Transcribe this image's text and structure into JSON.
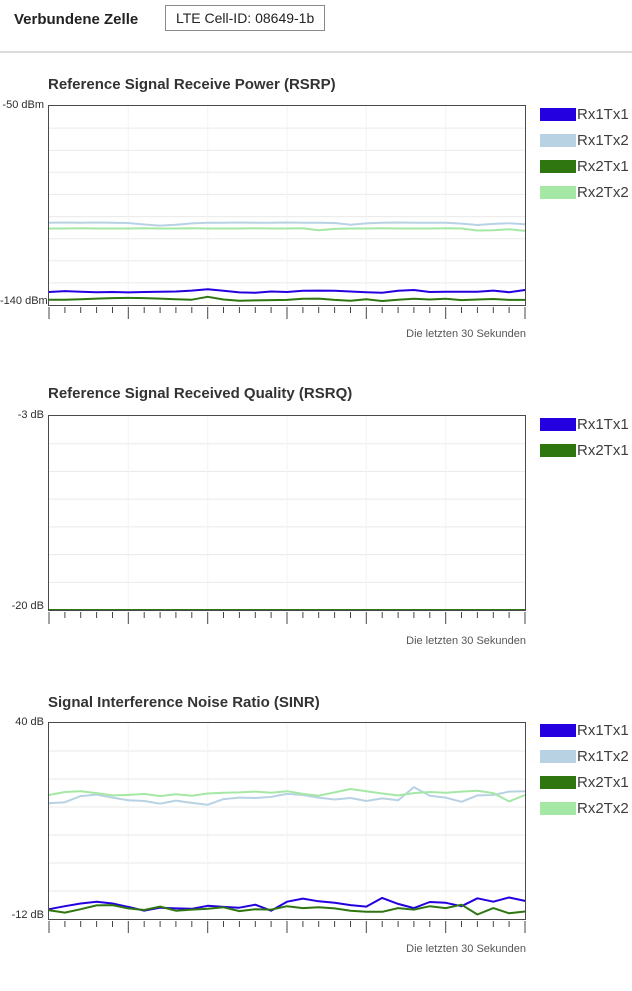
{
  "header": {
    "title": "Verbundene Zelle",
    "cell_id_value": "LTE Cell-ID: 08649-1b"
  },
  "colors": {
    "rx1tx1": "#2400e0",
    "rx1tx2": "#b8d2e4",
    "rx2tx1": "#2f7611",
    "rx2tx2": "#a5e8a5",
    "plot_border": "#4a4a4a",
    "grid": "#eaeaea",
    "grid_vertical": "#f3f3f3",
    "tick": "#444444"
  },
  "charts": [
    {
      "title": "Reference Signal Receive Power (RSRP)",
      "y_max_label": "-50 dBm",
      "y_min_label": "-140 dBm",
      "caption": "Die letzten 30 Sekunden",
      "legend": [
        {
          "label": "Rx1Tx1",
          "color_key": "rx1tx1"
        },
        {
          "label": "Rx1Tx2",
          "color_key": "rx1tx2"
        },
        {
          "label": "Rx2Tx1",
          "color_key": "rx2tx1"
        },
        {
          "label": "Rx2Tx2",
          "color_key": "rx2tx2"
        }
      ],
      "chart_data": {
        "type": "line",
        "title": "Reference Signal Receive Power (RSRP)",
        "ylabel": "dBm",
        "ylim": [
          -140,
          -50
        ],
        "y_divisions": 9,
        "x_range": [
          0,
          30
        ],
        "x_ticks": 31,
        "major_tick_every": 5,
        "grid": true,
        "legend_position": "right",
        "series": [
          {
            "name": "Rx1Tx2",
            "color_key": "rx1tx2",
            "values": [
              -102.8,
              -102.7,
              -102.8,
              -102.7,
              -102.8,
              -102.9,
              -103.6,
              -104.1,
              -103.7,
              -103.1,
              -102.8,
              -102.8,
              -102.7,
              -102.8,
              -102.8,
              -102.7,
              -102.8,
              -102.8,
              -102.9,
              -103.7,
              -103.1,
              -102.8,
              -102.7,
              -102.8,
              -102.8,
              -102.8,
              -103.2,
              -103.8,
              -103.3,
              -103.0,
              -103.5
            ]
          },
          {
            "name": "Rx2Tx2",
            "color_key": "rx2tx2",
            "values": [
              -105.4,
              -105.4,
              -105.3,
              -105.4,
              -105.4,
              -105.4,
              -105.3,
              -105.4,
              -105.4,
              -105.3,
              -105.4,
              -105.4,
              -105.4,
              -105.3,
              -105.4,
              -105.4,
              -105.3,
              -106.2,
              -105.6,
              -105.4,
              -105.4,
              -105.3,
              -105.4,
              -105.4,
              -105.4,
              -105.3,
              -105.4,
              -106.3,
              -106.2,
              -105.7,
              -106.5
            ]
          },
          {
            "name": "Rx2Tx1",
            "color_key": "rx2tx1",
            "values": [
              -137.6,
              -137.6,
              -137.4,
              -137.1,
              -136.9,
              -136.8,
              -136.9,
              -137.1,
              -137.4,
              -137.6,
              -136.3,
              -137.5,
              -138.1,
              -137.9,
              -137.8,
              -137.7,
              -137.2,
              -137.1,
              -137.7,
              -138.1,
              -137.4,
              -138.2,
              -137.6,
              -137.2,
              -137.5,
              -137.2,
              -137.8,
              -137.5,
              -137.3,
              -137.7,
              -137.7
            ]
          },
          {
            "name": "Rx1Tx1",
            "color_key": "rx1tx1",
            "values": [
              -134.1,
              -133.7,
              -134.0,
              -134.2,
              -134.1,
              -134.3,
              -134.1,
              -134.0,
              -133.9,
              -133.5,
              -132.9,
              -133.6,
              -134.3,
              -134.5,
              -133.9,
              -134.1,
              -133.6,
              -133.5,
              -133.6,
              -133.9,
              -134.2,
              -134.5,
              -133.6,
              -133.2,
              -134.1,
              -134.0,
              -134.0,
              -134.0,
              -133.5,
              -134.2,
              -133.2
            ]
          }
        ]
      }
    },
    {
      "title": "Reference Signal Received Quality (RSRQ)",
      "y_max_label": "-3 dB",
      "y_min_label": "-20 dB",
      "caption": "Die letzten 30 Sekunden",
      "legend": [
        {
          "label": "Rx1Tx1",
          "color_key": "rx1tx1"
        },
        {
          "label": "Rx2Tx1",
          "color_key": "rx2tx1"
        }
      ],
      "chart_data": {
        "type": "line",
        "title": "Reference Signal Received Quality (RSRQ)",
        "ylabel": "dB",
        "ylim": [
          -20,
          -3
        ],
        "y_divisions": 7,
        "x_range": [
          0,
          30
        ],
        "x_ticks": 31,
        "major_tick_every": 5,
        "grid": true,
        "legend_position": "right",
        "series": [
          {
            "name": "Rx1Tx1",
            "color_key": "rx1tx1",
            "values": [
              -20,
              -20,
              -20,
              -20,
              -20,
              -20,
              -20,
              -20,
              -20,
              -20,
              -20,
              -20,
              -20,
              -20,
              -20,
              -20,
              -20,
              -20,
              -20,
              -20,
              -20,
              -20,
              -20,
              -20,
              -20,
              -20,
              -20,
              -20,
              -20,
              -20,
              -20
            ]
          },
          {
            "name": "Rx2Tx1",
            "color_key": "rx2tx1",
            "values": [
              -20,
              -20,
              -20,
              -20,
              -20,
              -20,
              -20,
              -20,
              -20,
              -20,
              -20,
              -20,
              -20,
              -20,
              -20,
              -20,
              -20,
              -20,
              -20,
              -20,
              -20,
              -20,
              -20,
              -20,
              -20,
              -20,
              -20,
              -20,
              -20,
              -20,
              -20
            ]
          }
        ]
      }
    },
    {
      "title": "Signal Interference Noise Ratio (SINR)",
      "y_max_label": "40 dB",
      "y_min_label": "-12 dB",
      "caption": "Die letzten 30 Sekunden",
      "legend": [
        {
          "label": "Rx1Tx1",
          "color_key": "rx1tx1"
        },
        {
          "label": "Rx1Tx2",
          "color_key": "rx1tx2"
        },
        {
          "label": "Rx2Tx1",
          "color_key": "rx2tx1"
        },
        {
          "label": "Rx2Tx2",
          "color_key": "rx2tx2"
        }
      ],
      "chart_data": {
        "type": "line",
        "title": "Signal Interference Noise Ratio (SINR)",
        "ylabel": "dB",
        "ylim": [
          -12,
          40
        ],
        "y_divisions": 7,
        "x_range": [
          0,
          30
        ],
        "x_ticks": 31,
        "major_tick_every": 5,
        "grid": true,
        "legend_position": "right",
        "series": [
          {
            "name": "Rx1Tx2",
            "color_key": "rx1tx2",
            "values": [
              18.7,
              19.0,
              20.6,
              21.0,
              20.2,
              19.5,
              19.3,
              18.6,
              19.4,
              18.8,
              18.3,
              19.8,
              20.2,
              20.1,
              20.4,
              21.2,
              20.9,
              20.2,
              19.7,
              20.1,
              19.3,
              20.0,
              19.5,
              23.0,
              20.7,
              20.2,
              19.1,
              20.8,
              20.9,
              21.8,
              21.9
            ]
          },
          {
            "name": "Rx2Tx2",
            "color_key": "rx2tx2",
            "values": [
              20.9,
              21.7,
              21.9,
              21.4,
              20.8,
              20.9,
              21.2,
              20.6,
              21.1,
              20.7,
              21.3,
              21.5,
              21.6,
              21.8,
              21.5,
              21.9,
              21.2,
              20.7,
              21.6,
              22.5,
              21.9,
              21.3,
              20.8,
              21.4,
              21.7,
              21.5,
              21.8,
              22.0,
              21.4,
              19.2,
              20.9
            ]
          },
          {
            "name": "Rx1Tx1",
            "color_key": "rx1tx1",
            "values": [
              -9.4,
              -8.6,
              -7.9,
              -7.4,
              -7.9,
              -8.8,
              -9.8,
              -9.0,
              -9.2,
              -9.3,
              -8.5,
              -8.8,
              -9.0,
              -8.2,
              -9.8,
              -7.4,
              -6.6,
              -7.3,
              -7.7,
              -8.3,
              -8.7,
              -6.4,
              -8.0,
              -9.1,
              -7.5,
              -7.7,
              -8.6,
              -6.5,
              -7.4,
              -6.3,
              -7.2
            ]
          },
          {
            "name": "Rx2Tx1",
            "color_key": "rx2tx1",
            "values": [
              -9.7,
              -10.3,
              -9.4,
              -8.4,
              -8.3,
              -9.2,
              -9.6,
              -8.7,
              -9.8,
              -9.5,
              -9.3,
              -8.9,
              -9.9,
              -9.4,
              -9.5,
              -8.6,
              -9.1,
              -8.9,
              -9.2,
              -9.8,
              -10.1,
              -10.1,
              -9.1,
              -9.5,
              -8.6,
              -9.1,
              -8.2,
              -10.8,
              -9.1,
              -10.5,
              -10.0
            ]
          }
        ]
      }
    }
  ]
}
